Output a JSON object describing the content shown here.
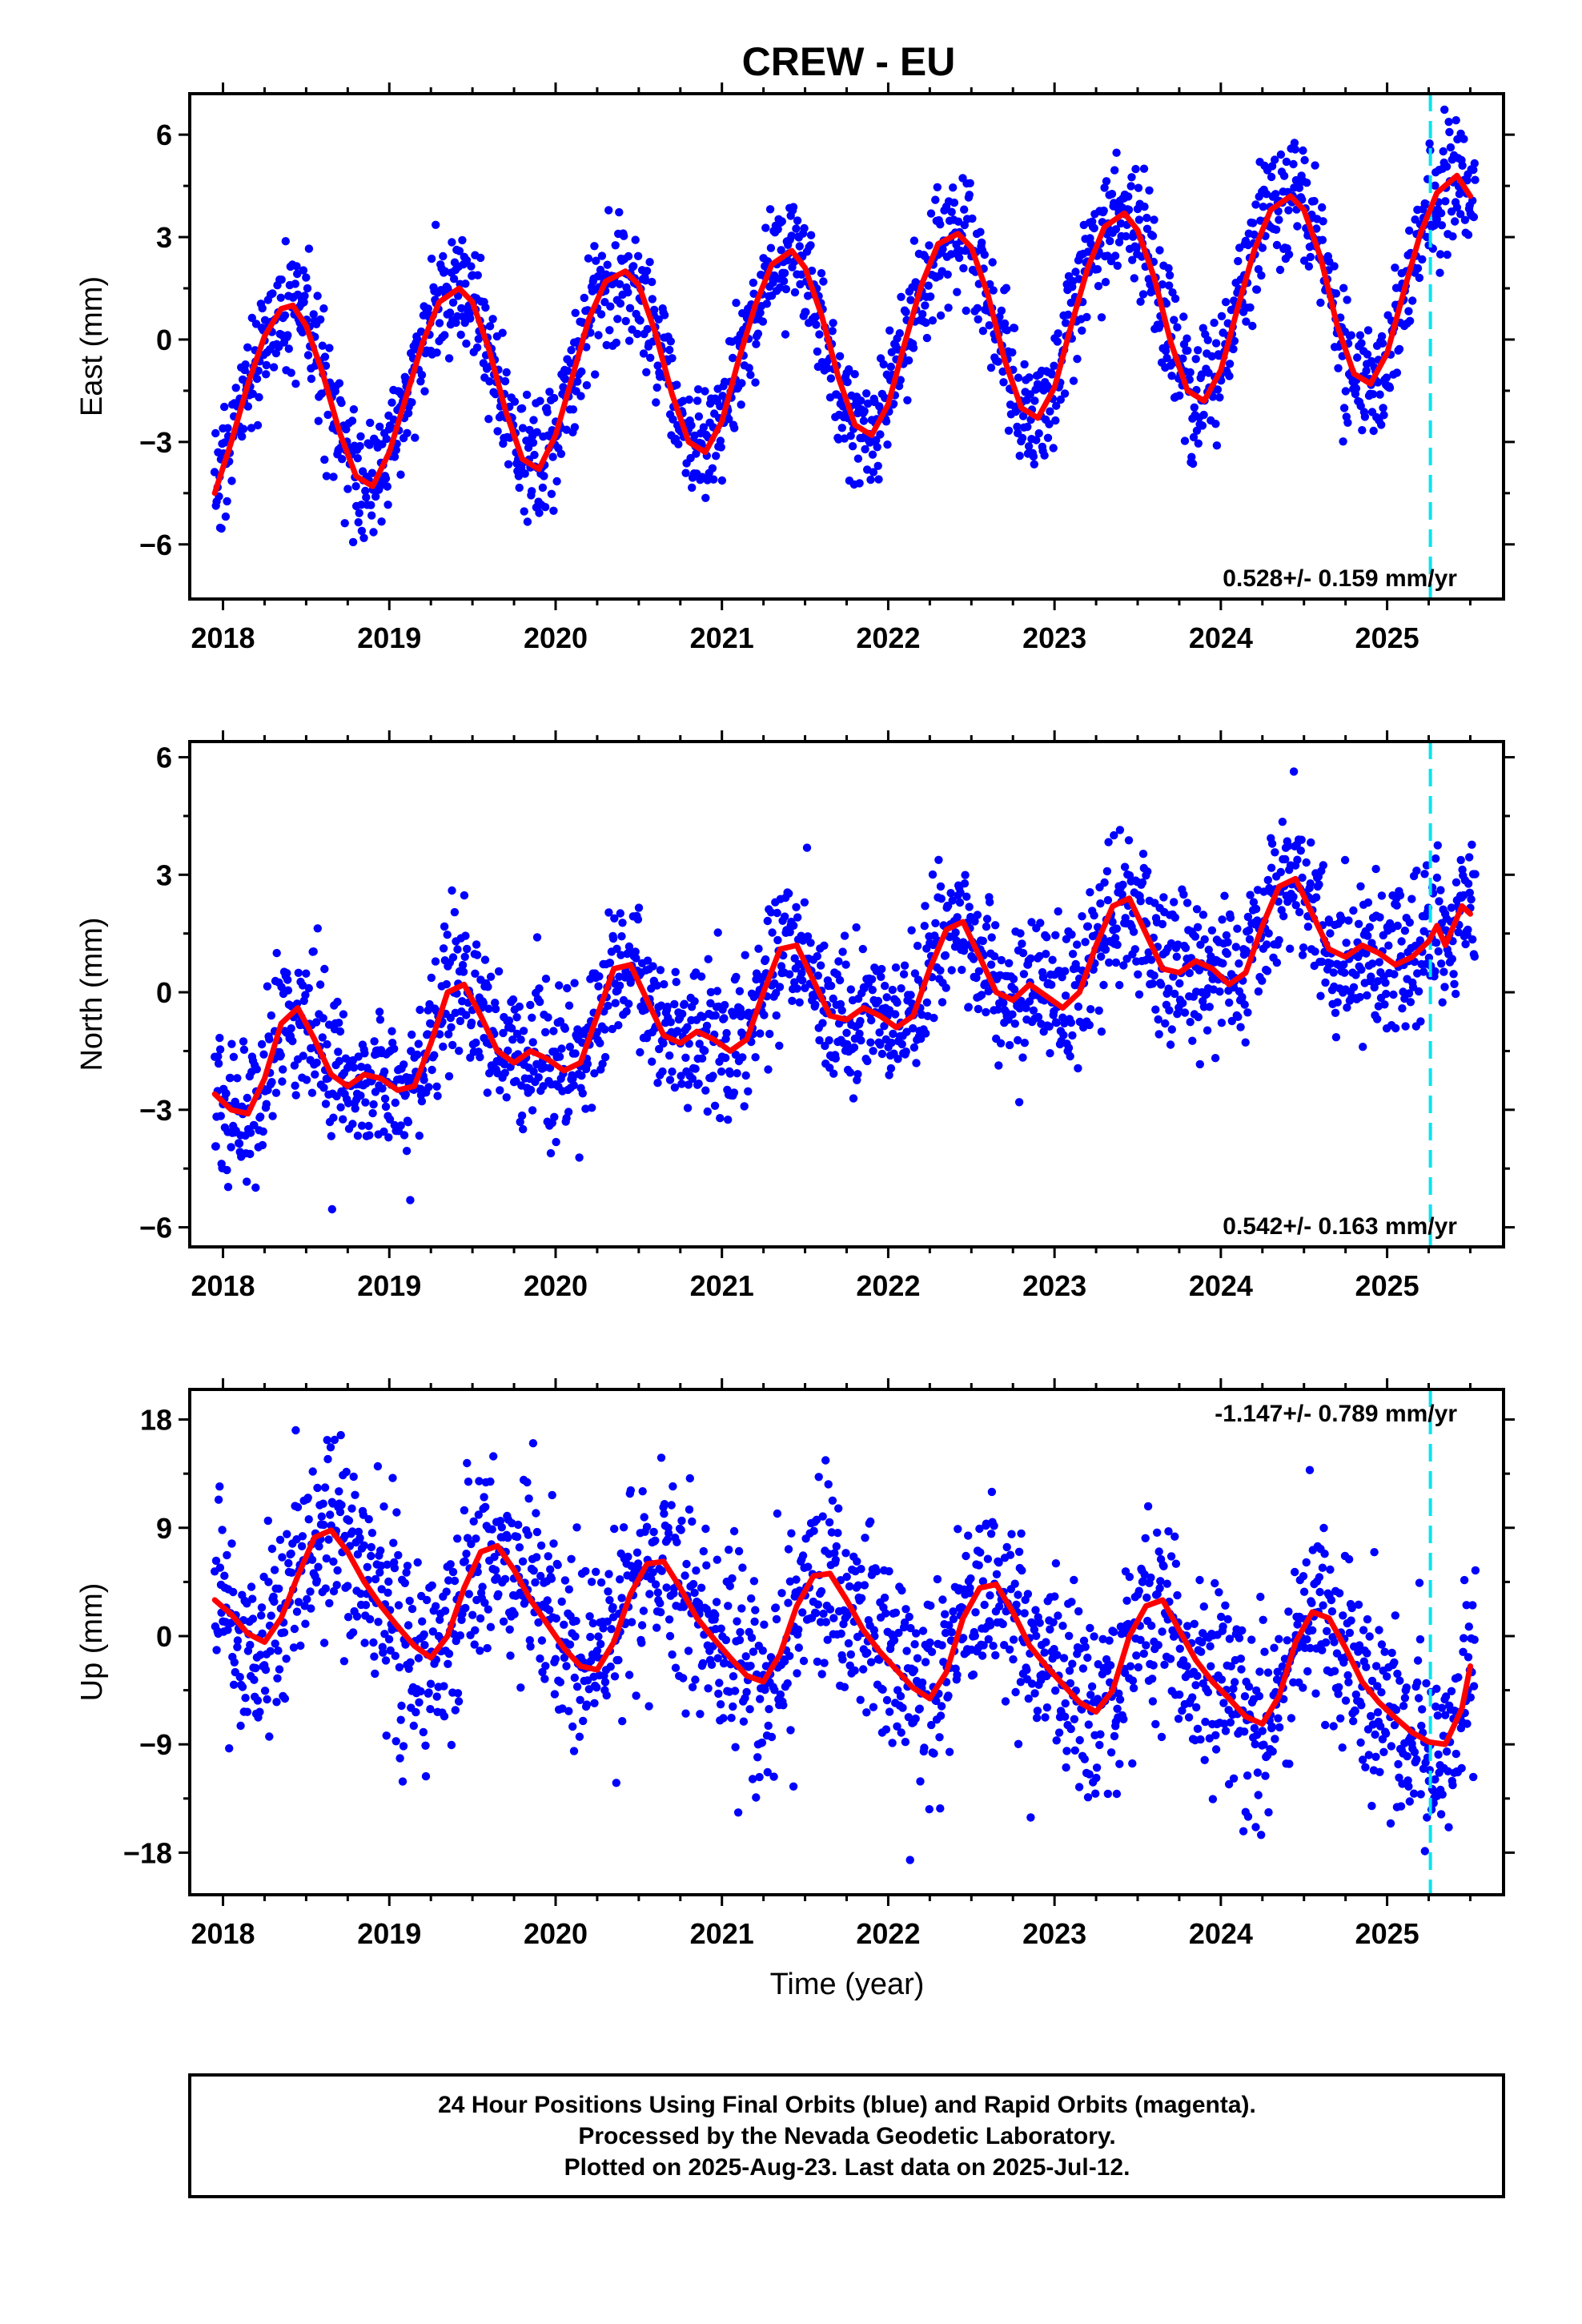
{
  "title": "CREW - EU",
  "xlabel": "Time (year)",
  "footer": [
    "24 Hour Positions Using Final Orbits (blue) and Rapid Orbits (magenta).",
    "Processed by the Nevada Geodetic Laboratory.",
    "Plotted on 2025-Aug-23. Last data on 2025-Jul-12."
  ],
  "colors": {
    "data": "#0000ff",
    "fit": "#ff0000",
    "marker": "#00e5ee",
    "frame": "#000000"
  },
  "chart_data": [
    {
      "type": "scatter",
      "ylabel": "East (mm)",
      "xlim": [
        2017.8,
        2025.7
      ],
      "ylim": [
        -7.6,
        7.2
      ],
      "xticks": [
        2018,
        2019,
        2020,
        2021,
        2022,
        2023,
        2024,
        2025
      ],
      "yticks": [
        6,
        3,
        0,
        -3,
        -6
      ],
      "ytick_labels": [
        "6",
        "3",
        "0",
        "−3",
        "−6"
      ],
      "rate_label": "0.528+/- 0.159 mm/yr",
      "rate_position": "bottom-right",
      "vline_x": 2025.26,
      "series": [
        {
          "role": "fit",
          "x": [
            2017.95,
            2018.05,
            2018.15,
            2018.25,
            2018.35,
            2018.42,
            2018.5,
            2018.6,
            2018.7,
            2018.8,
            2018.9,
            2019.0,
            2019.1,
            2019.2,
            2019.3,
            2019.42,
            2019.5,
            2019.6,
            2019.7,
            2019.8,
            2019.9,
            2020.0,
            2020.1,
            2020.2,
            2020.3,
            2020.42,
            2020.5,
            2020.6,
            2020.7,
            2020.8,
            2020.9,
            2021.0,
            2021.1,
            2021.2,
            2021.3,
            2021.42,
            2021.5,
            2021.6,
            2021.7,
            2021.8,
            2021.9,
            2022.0,
            2022.1,
            2022.2,
            2022.3,
            2022.42,
            2022.5,
            2022.6,
            2022.7,
            2022.8,
            2022.9,
            2023.0,
            2023.1,
            2023.2,
            2023.3,
            2023.42,
            2023.5,
            2023.6,
            2023.7,
            2023.8,
            2023.9,
            2024.0,
            2024.1,
            2024.2,
            2024.3,
            2024.42,
            2024.5,
            2024.6,
            2024.7,
            2024.8,
            2024.9,
            2025.0,
            2025.1,
            2025.2,
            2025.3,
            2025.42,
            2025.5
          ],
          "y": [
            -4.5,
            -3.0,
            -1.3,
            0.1,
            0.9,
            1.0,
            0.4,
            -1.0,
            -2.7,
            -4.0,
            -4.3,
            -3.3,
            -1.7,
            -0.1,
            1.1,
            1.5,
            1.1,
            -0.3,
            -2.1,
            -3.5,
            -3.8,
            -2.8,
            -1.1,
            0.6,
            1.7,
            2.0,
            1.6,
            0.2,
            -1.6,
            -3.0,
            -3.3,
            -2.4,
            -0.6,
            1.0,
            2.2,
            2.6,
            2.1,
            0.7,
            -1.1,
            -2.5,
            -2.8,
            -1.9,
            -0.1,
            1.6,
            2.8,
            3.1,
            2.7,
            1.3,
            -0.6,
            -2.0,
            -2.3,
            -1.4,
            0.4,
            2.1,
            3.3,
            3.7,
            3.2,
            1.8,
            -0.1,
            -1.5,
            -1.8,
            -0.9,
            0.9,
            2.6,
            3.8,
            4.2,
            3.8,
            2.4,
            0.4,
            -1.0,
            -1.3,
            -0.4,
            1.4,
            3.1,
            4.3,
            4.8,
            4.2
          ]
        },
        {
          "role": "observations",
          "n_points": 1850,
          "noise_sd_mm": 0.9
        }
      ]
    },
    {
      "type": "scatter",
      "ylabel": "North (mm)",
      "xlim": [
        2017.8,
        2025.7
      ],
      "ylim": [
        -6.5,
        6.4
      ],
      "xticks": [
        2018,
        2019,
        2020,
        2021,
        2022,
        2023,
        2024,
        2025
      ],
      "yticks": [
        6,
        3,
        0,
        -3,
        -6
      ],
      "ytick_labels": [
        "6",
        "3",
        "0",
        "−3",
        "−6"
      ],
      "rate_label": "0.542+/- 0.163 mm/yr",
      "rate_position": "bottom-right",
      "vline_x": 2025.26,
      "series": [
        {
          "role": "fit",
          "x": [
            2017.95,
            2018.05,
            2018.15,
            2018.25,
            2018.35,
            2018.45,
            2018.55,
            2018.65,
            2018.75,
            2018.85,
            2018.95,
            2019.05,
            2019.15,
            2019.25,
            2019.35,
            2019.45,
            2019.55,
            2019.65,
            2019.75,
            2019.85,
            2019.95,
            2020.05,
            2020.15,
            2020.25,
            2020.35,
            2020.45,
            2020.55,
            2020.65,
            2020.75,
            2020.85,
            2020.95,
            2021.05,
            2021.15,
            2021.25,
            2021.35,
            2021.45,
            2021.55,
            2021.65,
            2021.75,
            2021.85,
            2021.95,
            2022.05,
            2022.15,
            2022.25,
            2022.35,
            2022.45,
            2022.55,
            2022.65,
            2022.75,
            2022.85,
            2022.95,
            2023.05,
            2023.15,
            2023.25,
            2023.35,
            2023.45,
            2023.55,
            2023.65,
            2023.75,
            2023.85,
            2023.95,
            2024.05,
            2024.15,
            2024.25,
            2024.35,
            2024.45,
            2024.55,
            2024.65,
            2024.75,
            2024.85,
            2024.95,
            2025.05,
            2025.15,
            2025.25,
            2025.3,
            2025.35,
            2025.45,
            2025.5
          ],
          "y": [
            -2.6,
            -3.0,
            -3.1,
            -2.2,
            -0.8,
            -0.4,
            -1.2,
            -2.1,
            -2.4,
            -2.1,
            -2.2,
            -2.5,
            -2.4,
            -1.3,
            0.0,
            0.2,
            -0.6,
            -1.5,
            -1.8,
            -1.5,
            -1.7,
            -2.0,
            -1.8,
            -0.6,
            0.6,
            0.7,
            -0.2,
            -1.1,
            -1.3,
            -1.0,
            -1.2,
            -1.5,
            -1.2,
            0.0,
            1.1,
            1.2,
            0.3,
            -0.6,
            -0.7,
            -0.4,
            -0.6,
            -0.9,
            -0.6,
            0.6,
            1.6,
            1.8,
            0.9,
            0.0,
            -0.2,
            0.2,
            -0.1,
            -0.4,
            0.0,
            1.2,
            2.2,
            2.4,
            1.5,
            0.6,
            0.5,
            0.8,
            0.6,
            0.2,
            0.5,
            1.7,
            2.7,
            2.9,
            2.0,
            1.1,
            0.9,
            1.2,
            1.0,
            0.7,
            0.9,
            1.3,
            1.7,
            1.2,
            2.2,
            2.0
          ]
        },
        {
          "role": "observations",
          "n_points": 1850,
          "noise_sd_mm": 0.95
        }
      ]
    },
    {
      "type": "scatter",
      "ylabel": "Up (mm)",
      "xlim": [
        2017.8,
        2025.7
      ],
      "ylim": [
        -21.5,
        20.5
      ],
      "xticks": [
        2018,
        2019,
        2020,
        2021,
        2022,
        2023,
        2024,
        2025
      ],
      "yticks": [
        18,
        9,
        0,
        -9,
        -18
      ],
      "ytick_labels": [
        "18",
        "9",
        "0",
        "−9",
        "−18"
      ],
      "rate_label": "-1.147+/- 0.789 mm/yr",
      "rate_position": "top-right",
      "vline_x": 2025.26,
      "series": [
        {
          "role": "fit",
          "x": [
            2017.95,
            2018.05,
            2018.15,
            2018.25,
            2018.35,
            2018.45,
            2018.55,
            2018.65,
            2018.75,
            2018.85,
            2018.95,
            2019.05,
            2019.15,
            2019.25,
            2019.35,
            2019.45,
            2019.55,
            2019.65,
            2019.75,
            2019.85,
            2019.95,
            2020.05,
            2020.15,
            2020.25,
            2020.35,
            2020.45,
            2020.55,
            2020.65,
            2020.75,
            2020.85,
            2020.95,
            2021.05,
            2021.15,
            2021.25,
            2021.35,
            2021.45,
            2021.55,
            2021.65,
            2021.75,
            2021.85,
            2021.95,
            2022.05,
            2022.15,
            2022.25,
            2022.35,
            2022.45,
            2022.55,
            2022.65,
            2022.75,
            2022.85,
            2022.95,
            2023.05,
            2023.15,
            2023.25,
            2023.35,
            2023.45,
            2023.55,
            2023.65,
            2023.75,
            2023.85,
            2023.95,
            2024.05,
            2024.15,
            2024.25,
            2024.35,
            2024.45,
            2024.55,
            2024.65,
            2024.75,
            2024.85,
            2024.95,
            2025.05,
            2025.15,
            2025.25,
            2025.35,
            2025.45,
            2025.5
          ],
          "y": [
            3.0,
            1.8,
            0.2,
            -0.5,
            1.5,
            5.0,
            8.2,
            8.8,
            7.0,
            4.5,
            2.5,
            0.8,
            -0.8,
            -1.8,
            0.0,
            4.0,
            7.0,
            7.5,
            5.5,
            3.0,
            1.0,
            -1.0,
            -2.5,
            -2.8,
            -0.5,
            3.5,
            6.0,
            6.2,
            4.0,
            1.5,
            -0.2,
            -1.8,
            -3.3,
            -3.8,
            -1.5,
            2.5,
            5.0,
            5.2,
            3.0,
            0.5,
            -1.3,
            -2.8,
            -4.3,
            -5.2,
            -3.0,
            1.5,
            4.0,
            4.3,
            2.0,
            -0.8,
            -2.5,
            -4.0,
            -5.5,
            -6.3,
            -4.5,
            0.0,
            2.5,
            3.0,
            0.5,
            -2.0,
            -3.8,
            -5.2,
            -6.7,
            -7.3,
            -5.0,
            -0.5,
            2.0,
            1.5,
            -1.0,
            -3.8,
            -5.5,
            -6.8,
            -8.0,
            -8.8,
            -9.0,
            -6.0,
            -2.5
          ]
        },
        {
          "role": "observations",
          "n_points": 1850,
          "noise_sd_mm": 4.2
        }
      ]
    }
  ]
}
